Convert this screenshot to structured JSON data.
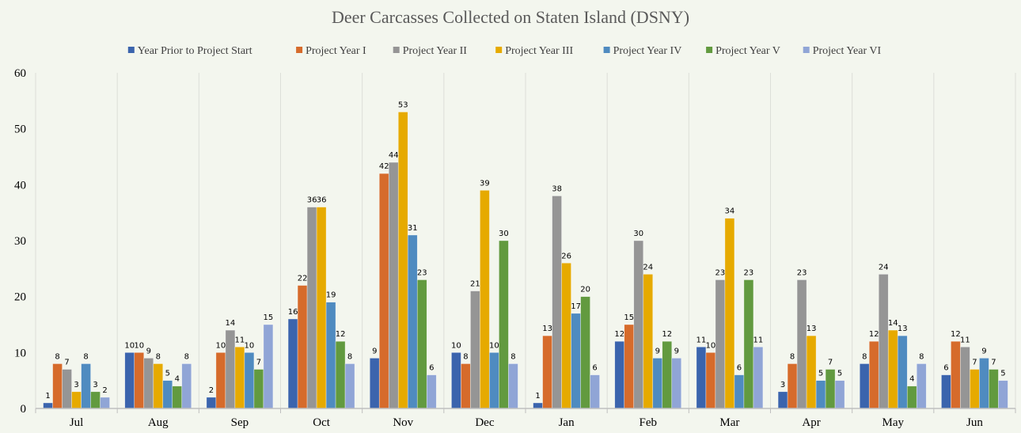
{
  "chart_data": {
    "type": "bar",
    "title": "Deer Carcasses Collected on Staten Island (DSNY)",
    "xlabel": "",
    "ylabel": "",
    "ylim": [
      0,
      60
    ],
    "yticks": [
      0,
      10,
      20,
      30,
      40,
      50,
      60
    ],
    "grid": "vertical category separators",
    "legend_placement": "top",
    "categories": [
      "Jul",
      "Aug",
      "Sep",
      "Oct",
      "Nov",
      "Dec",
      "Jan",
      "Feb",
      "Mar",
      "Apr",
      "May",
      "Jun"
    ],
    "series": [
      {
        "name": "Year Prior to Project Start",
        "color": "#3b64ad",
        "values": [
          1,
          10,
          2,
          16,
          9,
          10,
          1,
          12,
          11,
          3,
          8,
          6
        ]
      },
      {
        "name": "Project Year I",
        "color": "#d66b2b",
        "values": [
          8,
          10,
          10,
          22,
          42,
          8,
          13,
          15,
          10,
          8,
          12,
          12
        ]
      },
      {
        "name": "Project Year II",
        "color": "#959595",
        "values": [
          7,
          9,
          14,
          36,
          44,
          21,
          38,
          30,
          23,
          23,
          24,
          11
        ]
      },
      {
        "name": "Project Year III",
        "color": "#e6aa00",
        "values": [
          3,
          8,
          11,
          36,
          53,
          39,
          26,
          24,
          34,
          13,
          14,
          7
        ]
      },
      {
        "name": "Project Year IV",
        "color": "#4f8bc0",
        "values": [
          8,
          5,
          10,
          19,
          31,
          10,
          17,
          9,
          6,
          5,
          13,
          9
        ]
      },
      {
        "name": "Project Year V",
        "color": "#629a3f",
        "values": [
          3,
          4,
          7,
          12,
          23,
          30,
          20,
          12,
          23,
          7,
          4,
          7
        ]
      },
      {
        "name": "Project Year VI",
        "color": "#90a5d6",
        "values": [
          2,
          8,
          15,
          8,
          6,
          8,
          6,
          9,
          11,
          5,
          8,
          5
        ]
      }
    ]
  }
}
